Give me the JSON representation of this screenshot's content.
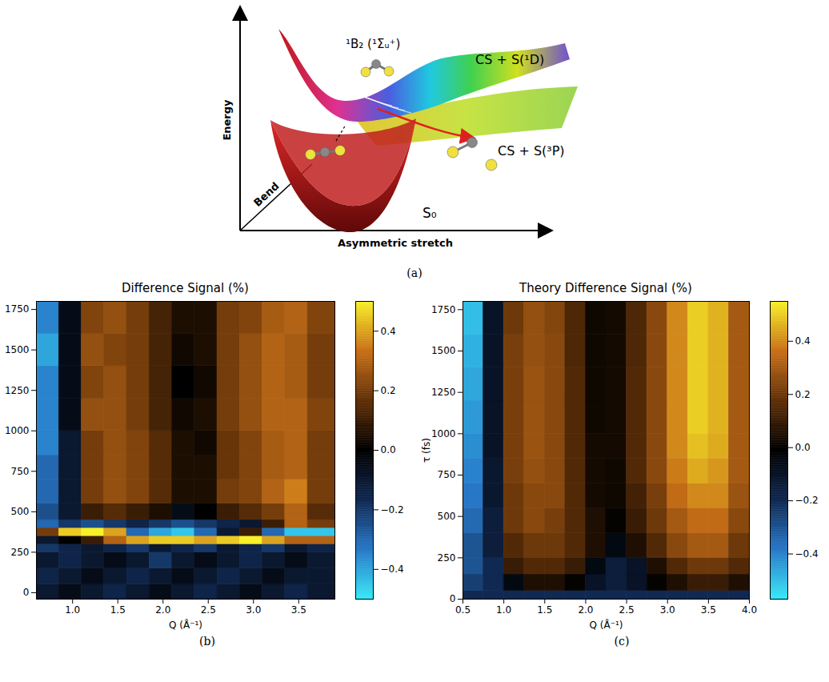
{
  "diagram": {
    "panel_label": "(a)",
    "axes": {
      "y": "Energy",
      "x": "Asymmetric stretch",
      "depth": "Bend"
    },
    "labels": {
      "excited": "¹B₂ (¹Σᵤ⁺)",
      "upper_asymptote": "CS + S(¹D)",
      "lower_asymptote": "CS + S(³P)",
      "ground": "S₀"
    }
  },
  "chart_data": [
    {
      "type": "heatmap",
      "title": "Difference Signal (%)",
      "panel_label": "(b)",
      "x_label": "Q (Å⁻¹)",
      "xlim": [
        0.6,
        3.9
      ],
      "ylim": [
        -40,
        1800
      ],
      "xticks": [
        {
          "value": 1,
          "label": "1.0"
        },
        1.5,
        {
          "value": 2,
          "label": "2.0"
        },
        2.5,
        {
          "value": 3,
          "label": "3.0"
        },
        3.5
      ],
      "yticks": [
        0,
        250,
        500,
        750,
        1000,
        1250,
        1500,
        1750
      ],
      "x_bins": [
        0.6,
        0.85,
        1.1,
        1.35,
        1.6,
        1.85,
        2.1,
        2.35,
        2.6,
        2.85,
        3.1,
        3.35,
        3.6,
        3.9
      ],
      "y_bins": [
        -40,
        50,
        150,
        250,
        300,
        350,
        400,
        450,
        550,
        700,
        850,
        1000,
        1200,
        1400,
        1600,
        1800
      ],
      "values": [
        [
          -0.1,
          -0.05,
          -0.1,
          -0.15,
          -0.1,
          -0.05,
          -0.1,
          -0.15,
          -0.1,
          -0.05,
          -0.1,
          -0.15,
          -0.1
        ],
        [
          -0.15,
          -0.1,
          -0.05,
          -0.1,
          -0.15,
          -0.1,
          -0.05,
          -0.1,
          -0.15,
          -0.1,
          -0.05,
          -0.1,
          -0.1
        ],
        [
          -0.1,
          -0.15,
          -0.1,
          -0.05,
          -0.1,
          -0.2,
          -0.1,
          -0.05,
          -0.1,
          -0.15,
          -0.1,
          -0.05,
          -0.1
        ],
        [
          -0.2,
          -0.15,
          -0.1,
          -0.15,
          -0.2,
          -0.1,
          -0.15,
          -0.2,
          -0.1,
          -0.15,
          -0.2,
          -0.1,
          -0.15
        ],
        [
          -0.1,
          0.0,
          0.1,
          0.3,
          0.4,
          0.45,
          0.45,
          0.4,
          0.45,
          0.5,
          0.4,
          0.3,
          0.3
        ],
        [
          0.2,
          0.45,
          0.5,
          0.4,
          -0.3,
          -0.4,
          -0.45,
          -0.3,
          -0.1,
          0.1,
          -0.3,
          -0.45,
          -0.45
        ],
        [
          -0.3,
          -0.2,
          -0.25,
          -0.2,
          -0.15,
          -0.2,
          -0.25,
          -0.2,
          -0.15,
          -0.1,
          0.1,
          0.3,
          0.2
        ],
        [
          -0.25,
          -0.1,
          0.1,
          0.15,
          0.1,
          0.05,
          -0.05,
          0.0,
          0.1,
          0.15,
          0.2,
          0.3,
          0.15
        ],
        [
          -0.3,
          -0.1,
          0.2,
          0.25,
          0.22,
          0.15,
          0.05,
          0.05,
          0.2,
          0.22,
          0.3,
          0.35,
          0.2
        ],
        [
          -0.3,
          -0.1,
          0.2,
          0.25,
          0.22,
          0.15,
          0.05,
          0.05,
          0.18,
          0.22,
          0.28,
          0.3,
          0.2
        ],
        [
          -0.35,
          -0.1,
          0.2,
          0.25,
          0.22,
          0.15,
          0.05,
          0.03,
          0.18,
          0.22,
          0.28,
          0.3,
          0.2
        ],
        [
          -0.35,
          -0.05,
          0.25,
          0.25,
          0.2,
          0.12,
          0.03,
          0.05,
          0.2,
          0.25,
          0.3,
          0.3,
          0.22
        ],
        [
          -0.35,
          -0.05,
          0.22,
          0.25,
          0.2,
          0.12,
          0.0,
          0.03,
          0.2,
          0.25,
          0.3,
          0.28,
          0.2
        ],
        [
          -0.4,
          -0.05,
          0.25,
          0.22,
          0.2,
          0.12,
          0.03,
          0.05,
          0.2,
          0.25,
          0.3,
          0.28,
          0.2
        ],
        [
          -0.35,
          -0.05,
          0.22,
          0.25,
          0.2,
          0.12,
          0.05,
          0.05,
          0.2,
          0.22,
          0.28,
          0.3,
          0.22
        ]
      ],
      "colorbar": {
        "lim": [
          -0.5,
          0.5
        ],
        "ticks": [
          {
            "value": -0.4,
            "label": "−0.4"
          },
          {
            "value": -0.2,
            "label": "−0.2"
          },
          {
            "value": 0,
            "label": "0.0"
          },
          0.2,
          0.4
        ],
        "colors": [
          "#38e8f8",
          "#2878c8",
          "#102850",
          "#000000",
          "#603008",
          "#c87018",
          "#f8f028"
        ]
      }
    },
    {
      "type": "heatmap",
      "title": "Theory Difference Signal (%)",
      "panel_label": "(c)",
      "x_label": "Q (Å⁻¹)",
      "y_label": "τ (fs)",
      "xlim": [
        0.5,
        4.0
      ],
      "ylim": [
        0,
        1800
      ],
      "xticks": [
        0.5,
        {
          "value": 1,
          "label": "1.0"
        },
        1.5,
        {
          "value": 2,
          "label": "2.0"
        },
        2.5,
        {
          "value": 3,
          "label": "3.0"
        },
        3.5,
        {
          "value": 4,
          "label": "4.0"
        }
      ],
      "yticks": [
        0,
        250,
        500,
        750,
        1000,
        1250,
        1500,
        1750
      ],
      "x_bins": [
        0.5,
        0.75,
        1.0,
        1.25,
        1.5,
        1.75,
        2.0,
        2.25,
        2.5,
        2.75,
        3.0,
        3.25,
        3.5,
        3.75,
        4.0
      ],
      "y_bins": [
        0,
        50,
        150,
        250,
        400,
        550,
        700,
        850,
        1000,
        1200,
        1400,
        1600,
        1800
      ],
      "values": [
        [
          -0.2,
          -0.2,
          -0.2,
          -0.2,
          -0.2,
          -0.2,
          -0.2,
          -0.2,
          -0.2,
          -0.2,
          -0.2,
          -0.2,
          -0.2,
          -0.2
        ],
        [
          -0.25,
          -0.2,
          -0.05,
          0.05,
          0.05,
          0.0,
          -0.1,
          -0.15,
          -0.1,
          0.0,
          0.05,
          0.1,
          0.1,
          0.05
        ],
        [
          -0.3,
          -0.2,
          0.1,
          0.15,
          0.15,
          0.1,
          -0.05,
          -0.15,
          -0.1,
          0.05,
          0.15,
          0.2,
          0.2,
          0.15
        ],
        [
          -0.3,
          -0.15,
          0.15,
          0.2,
          0.2,
          0.15,
          0.05,
          -0.05,
          0.05,
          0.15,
          0.25,
          0.3,
          0.3,
          0.2
        ],
        [
          -0.35,
          -0.15,
          0.2,
          0.25,
          0.22,
          0.15,
          0.05,
          0.0,
          0.1,
          0.2,
          0.3,
          0.35,
          0.35,
          0.25
        ],
        [
          -0.38,
          -0.12,
          0.2,
          0.25,
          0.25,
          0.15,
          0.03,
          0.02,
          0.12,
          0.22,
          0.35,
          0.4,
          0.4,
          0.28
        ],
        [
          -0.4,
          -0.12,
          0.22,
          0.27,
          0.25,
          0.15,
          0.03,
          0.02,
          0.15,
          0.25,
          0.38,
          0.45,
          0.42,
          0.3
        ],
        [
          -0.42,
          -0.1,
          0.22,
          0.28,
          0.25,
          0.15,
          0.03,
          0.03,
          0.15,
          0.25,
          0.4,
          0.48,
          0.45,
          0.3
        ],
        [
          -0.44,
          -0.1,
          0.22,
          0.28,
          0.25,
          0.15,
          0.02,
          0.03,
          0.15,
          0.25,
          0.4,
          0.5,
          0.46,
          0.3
        ],
        [
          -0.46,
          -0.1,
          0.22,
          0.28,
          0.25,
          0.15,
          0.02,
          0.03,
          0.15,
          0.25,
          0.4,
          0.5,
          0.46,
          0.3
        ],
        [
          -0.48,
          -0.1,
          0.22,
          0.27,
          0.25,
          0.14,
          0.02,
          0.03,
          0.14,
          0.25,
          0.4,
          0.5,
          0.46,
          0.3
        ],
        [
          -0.5,
          -0.1,
          0.2,
          0.27,
          0.24,
          0.14,
          0.02,
          0.03,
          0.14,
          0.25,
          0.4,
          0.5,
          0.46,
          0.3
        ]
      ],
      "colorbar": {
        "lim": [
          -0.57,
          0.55
        ],
        "ticks": [
          {
            "value": -0.4,
            "label": "−0.4"
          },
          {
            "value": -0.2,
            "label": "−0.2"
          },
          {
            "value": 0,
            "label": "0.0"
          },
          0.2,
          0.4
        ],
        "colors": [
          "#38e8f8",
          "#2878c8",
          "#102850",
          "#000000",
          "#603008",
          "#c87018",
          "#f8f028"
        ]
      }
    }
  ]
}
